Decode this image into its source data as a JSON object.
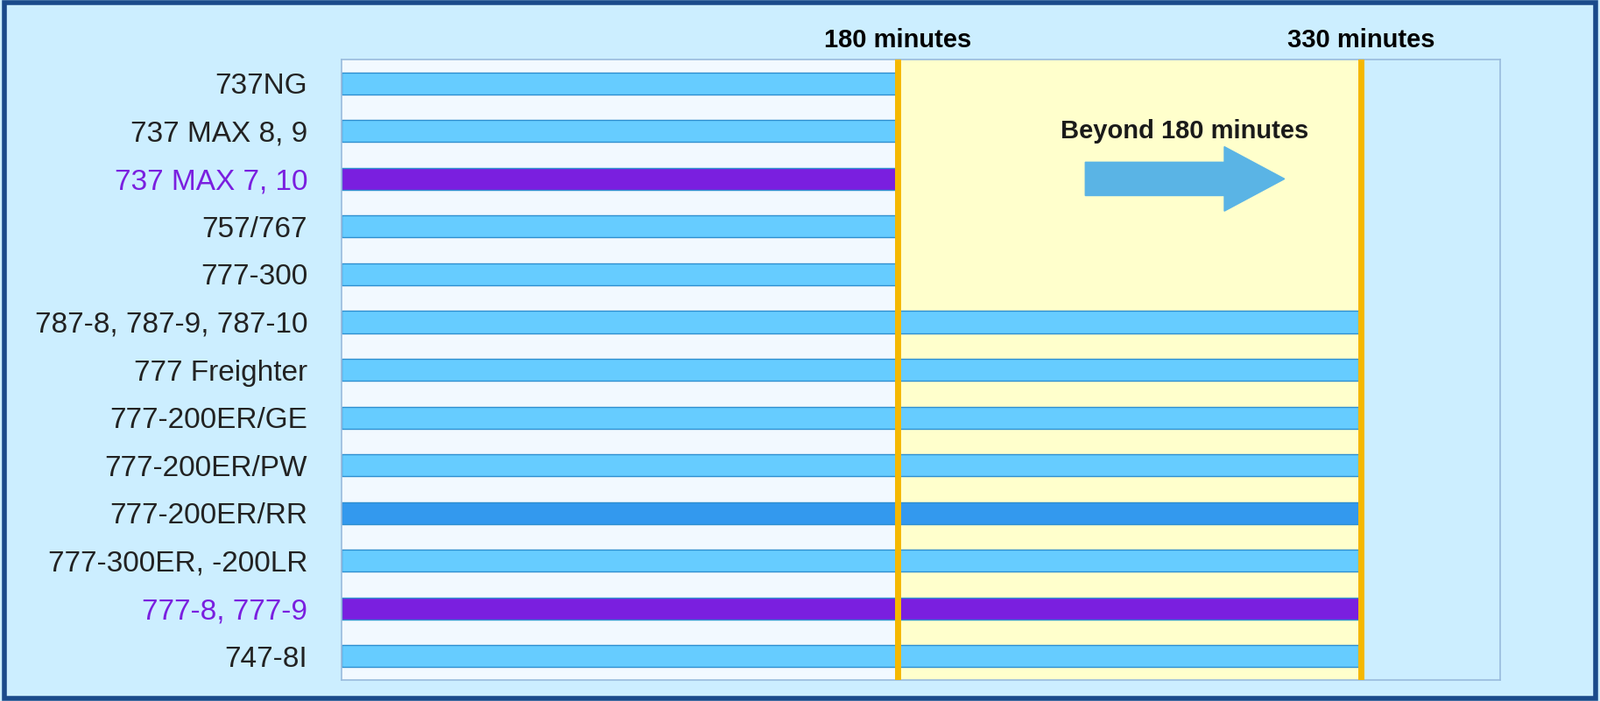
{
  "chart_data": {
    "type": "bar",
    "orientation": "horizontal",
    "categories": [
      "737NG",
      "737 MAX 8, 9",
      "737 MAX 7, 10",
      "757/767",
      "777-300",
      "787-8, 787-9, 787-10",
      "777 Freighter",
      "777-200ER/GE",
      "777-200ER/PW",
      "777-200ER/RR",
      "777-300ER, -200LR",
      "777-8, 777-9",
      "747-8I"
    ],
    "values": [
      180,
      180,
      180,
      180,
      180,
      330,
      330,
      330,
      330,
      330,
      330,
      330,
      330
    ],
    "colors": [
      "#66ccff",
      "#66ccff",
      "#7a1fdf",
      "#66ccff",
      "#66ccff",
      "#66ccff",
      "#66ccff",
      "#66ccff",
      "#66ccff",
      "#3399ee",
      "#66ccff",
      "#7a1fdf",
      "#66ccff"
    ],
    "xlim": [
      0,
      375
    ],
    "xticks": [
      {
        "value": 180,
        "label": "180 minutes"
      },
      {
        "value": 330,
        "label": "330 minutes"
      }
    ],
    "grid": true,
    "annotations": [
      "Beyond 180 minutes"
    ]
  }
}
